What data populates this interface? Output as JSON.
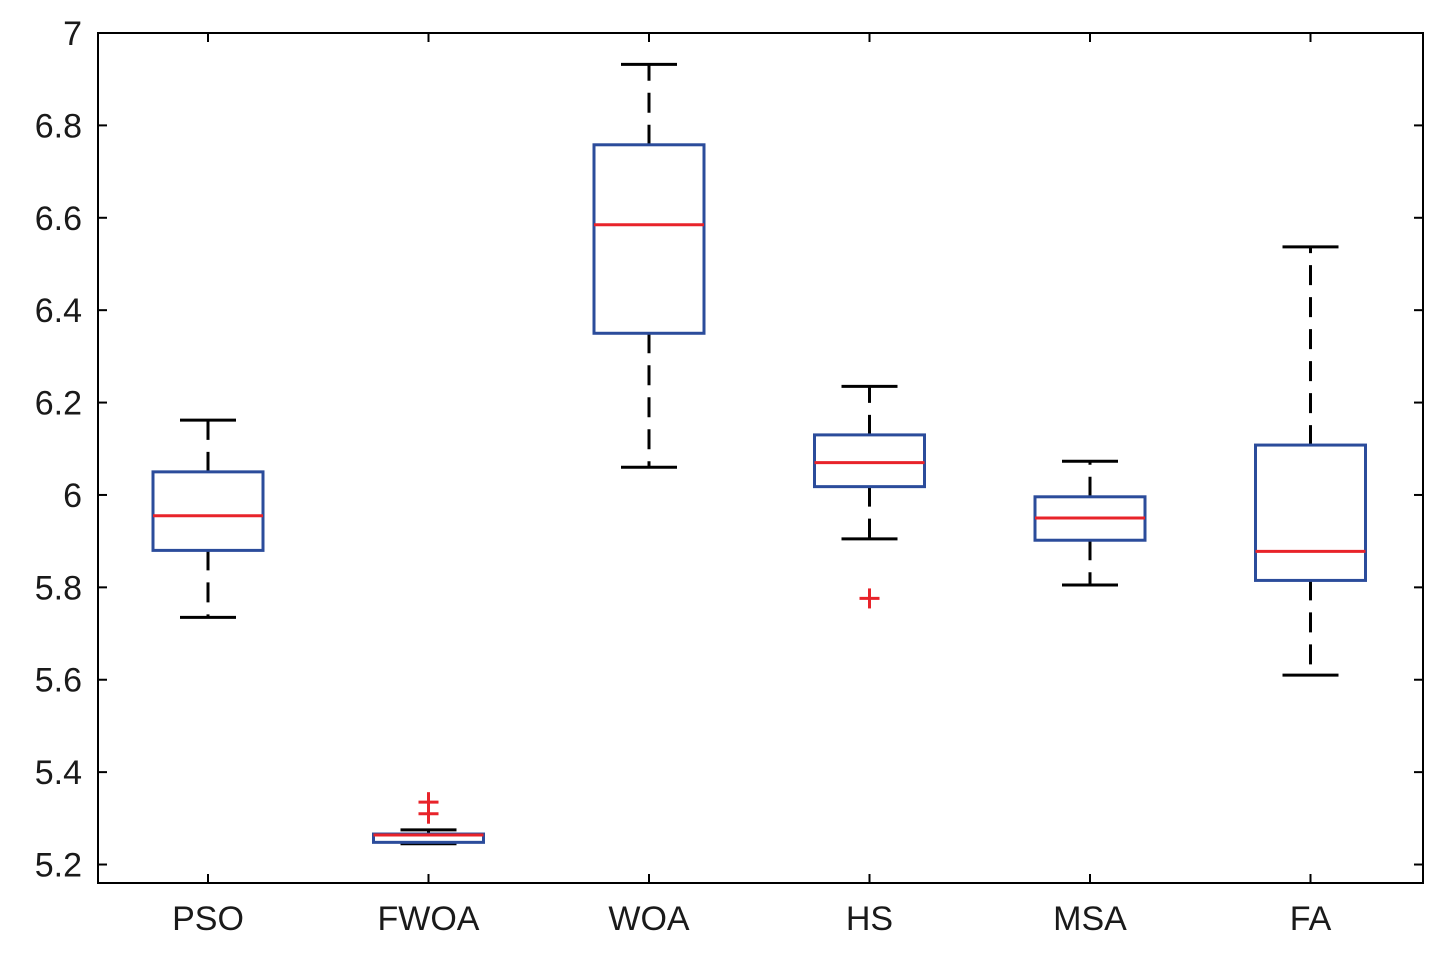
{
  "chart_data": {
    "type": "box",
    "title": "",
    "xlabel": "",
    "ylabel": "",
    "ylim": [
      5.16,
      7.0
    ],
    "yticks": [
      5.2,
      5.4,
      5.6,
      5.8,
      6,
      6.2,
      6.4,
      6.6,
      6.8,
      7
    ],
    "ytick_labels": [
      "5.2",
      "5.4",
      "5.6",
      "5.8",
      "6",
      "6.2",
      "6.4",
      "6.6",
      "6.8",
      "7"
    ],
    "categories": [
      "PSO",
      "FWOA",
      "WOA",
      "HS",
      "MSA",
      "FA"
    ],
    "boxes": [
      {
        "name": "PSO",
        "whisker_low": 5.735,
        "q1": 5.88,
        "median": 5.955,
        "q3": 6.05,
        "whisker_high": 6.162,
        "outliers": []
      },
      {
        "name": "FWOA",
        "whisker_low": 5.245,
        "q1": 5.248,
        "median": 5.264,
        "q3": 5.266,
        "whisker_high": 5.275,
        "outliers": [
          5.31,
          5.335
        ]
      },
      {
        "name": "WOA",
        "whisker_low": 6.06,
        "q1": 6.35,
        "median": 6.585,
        "q3": 6.758,
        "whisker_high": 6.932,
        "outliers": []
      },
      {
        "name": "HS",
        "whisker_low": 5.905,
        "q1": 6.018,
        "median": 6.07,
        "q3": 6.13,
        "whisker_high": 6.235,
        "outliers": [
          5.776
        ]
      },
      {
        "name": "MSA",
        "whisker_low": 5.805,
        "q1": 5.902,
        "median": 5.95,
        "q3": 5.996,
        "whisker_high": 6.073,
        "outliers": []
      },
      {
        "name": "FA",
        "whisker_low": 5.61,
        "q1": 5.815,
        "median": 5.878,
        "q3": 6.108,
        "whisker_high": 6.537,
        "outliers": []
      }
    ],
    "colors": {
      "box": "#2b4c9b",
      "median": "#e8232a",
      "whisker": "#000000",
      "outlier": "#e8232a",
      "axis": "#000000"
    },
    "grid": false
  }
}
